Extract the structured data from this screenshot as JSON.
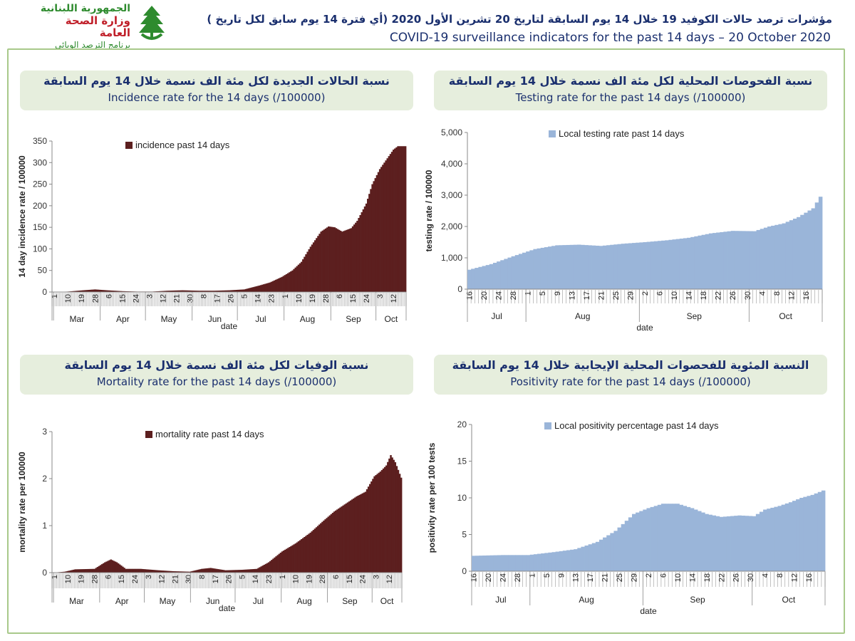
{
  "header": {
    "logo": {
      "line1": "الجمهورية اللبنانية",
      "line2": "وزارة الصحة العامة",
      "line3": "برنامج الترصد الوبائي",
      "icon": "cedar-tree-hands-icon",
      "colors": {
        "green": "#2e8b2e",
        "red": "#c0202a"
      }
    },
    "title_ar": "مؤشرات ترصد حالات الكوفيد 19 خلال  14 يوم السابقة لتاريخ 20 تشرين الأول 2020 (أي فترة  14 يوم سابق لكل تاريخ )",
    "title_en": "COVID-19 surveillance indicators for the past 14 days – 20 October 2020"
  },
  "panels": {
    "incidence": {
      "title_ar": "نسبة الحالات الجديدة لكل مئة الف نسمة خلال 14 يوم السابقة",
      "title_en": "Incidence rate for the 14 days  (/100000)"
    },
    "testing": {
      "title_ar": "نسبة الفحوصات المحلية لكل مئة الف نسمة خلال 14 يوم السابقة",
      "title_en": "Testing rate for the past 14 days (/100000)"
    },
    "mortality": {
      "title_ar": "نسبة الوفيات لكل مئة الف نسمة خلال 14 يوم السابقة",
      "title_en": "Mortality rate for the past 14 days (/100000)"
    },
    "positivity": {
      "title_ar": "النسبة المئوية للفحصوات المحلية الإيجابية خلال 14 يوم السابقة",
      "title_en": "Positivity rate for the past 14 days (/100000)"
    }
  },
  "chart_data": [
    {
      "id": "incidence",
      "type": "area",
      "color": "#5c1f1f",
      "legend": "incidence past 14 days",
      "legend_position": "top",
      "xlabel": "date",
      "ylabel": "14 day incidence rate / 100000",
      "ylim": [
        0,
        350
      ],
      "yticks": [
        "0",
        "50",
        "100",
        "150",
        "200",
        "250",
        "300",
        "350"
      ],
      "x_range": [
        "2020-02-29",
        "2020-10-20"
      ],
      "day_ticks": [
        "1",
        "10",
        "19",
        "28",
        "6",
        "15",
        "24",
        "3",
        "12",
        "21",
        "30",
        "8",
        "17",
        "26",
        "5",
        "14",
        "23",
        "1",
        "10",
        "19",
        "28",
        "6",
        "15",
        "24",
        "3",
        "12"
      ],
      "months": [
        "Mar",
        "Apr",
        "May",
        "Jun",
        "Jul",
        "Aug",
        "Sep",
        "Oct"
      ],
      "points": [
        [
          "2020-02-29",
          0
        ],
        [
          "2020-03-10",
          1
        ],
        [
          "2020-03-20",
          4
        ],
        [
          "2020-03-28",
          6
        ],
        [
          "2020-04-05",
          4
        ],
        [
          "2020-04-15",
          2
        ],
        [
          "2020-04-25",
          1
        ],
        [
          "2020-05-05",
          1
        ],
        [
          "2020-05-15",
          3
        ],
        [
          "2020-05-25",
          4
        ],
        [
          "2020-06-05",
          3
        ],
        [
          "2020-06-15",
          3
        ],
        [
          "2020-06-25",
          4
        ],
        [
          "2020-07-05",
          6
        ],
        [
          "2020-07-15",
          15
        ],
        [
          "2020-07-22",
          22
        ],
        [
          "2020-07-30",
          35
        ],
        [
          "2020-08-06",
          50
        ],
        [
          "2020-08-12",
          70
        ],
        [
          "2020-08-18",
          105
        ],
        [
          "2020-08-25",
          140
        ],
        [
          "2020-08-30",
          152
        ],
        [
          "2020-09-03",
          150
        ],
        [
          "2020-09-08",
          140
        ],
        [
          "2020-09-14",
          148
        ],
        [
          "2020-09-18",
          165
        ],
        [
          "2020-09-24",
          205
        ],
        [
          "2020-09-28",
          250
        ],
        [
          "2020-10-03",
          285
        ],
        [
          "2020-10-08",
          310
        ],
        [
          "2020-10-12",
          330
        ],
        [
          "2020-10-15",
          338
        ],
        [
          "2020-10-20",
          338
        ]
      ]
    },
    {
      "id": "testing",
      "type": "area",
      "color": "#9ab5d9",
      "legend": "Local testing rate past 14 days",
      "legend_position": "top",
      "xlabel": "date",
      "ylabel": "testing rate / 100000",
      "ylim": [
        0,
        5000
      ],
      "yticks": [
        "0",
        "1,000",
        "2,000",
        "3,000",
        "4,000",
        "5,000"
      ],
      "x_range": [
        "2020-07-16",
        "2020-10-20"
      ],
      "day_ticks": [
        "16",
        "20",
        "24",
        "28",
        "1",
        "5",
        "9",
        "13",
        "17",
        "21",
        "25",
        "29",
        "2",
        "6",
        "10",
        "14",
        "18",
        "22",
        "26",
        "30",
        "4",
        "8",
        "12",
        "16"
      ],
      "months": [
        "Jul",
        "Aug",
        "Sep",
        "Oct"
      ],
      "points": [
        [
          "2020-07-16",
          620
        ],
        [
          "2020-07-22",
          800
        ],
        [
          "2020-07-28",
          1050
        ],
        [
          "2020-08-03",
          1280
        ],
        [
          "2020-08-09",
          1400
        ],
        [
          "2020-08-15",
          1420
        ],
        [
          "2020-08-21",
          1380
        ],
        [
          "2020-08-27",
          1450
        ],
        [
          "2020-09-02",
          1500
        ],
        [
          "2020-09-08",
          1560
        ],
        [
          "2020-09-14",
          1640
        ],
        [
          "2020-09-20",
          1780
        ],
        [
          "2020-09-26",
          1860
        ],
        [
          "2020-10-02",
          1850
        ],
        [
          "2020-10-06",
          2000
        ],
        [
          "2020-10-10",
          2100
        ],
        [
          "2020-10-14",
          2300
        ],
        [
          "2020-10-18",
          2580
        ],
        [
          "2020-10-20",
          2950
        ],
        [
          "2020-10-20",
          3000
        ]
      ]
    },
    {
      "id": "mortality",
      "type": "area",
      "color": "#5c1f1f",
      "legend": "mortality rate past 14 days",
      "legend_position": "top",
      "xlabel": "date",
      "ylabel": "mortality rate per 100000",
      "ylim": [
        0,
        3
      ],
      "yticks": [
        "0",
        "1",
        "2",
        "3"
      ],
      "x_range": [
        "2020-02-29",
        "2020-10-20"
      ],
      "day_ticks": [
        "1",
        "10",
        "19",
        "28",
        "6",
        "15",
        "24",
        "3",
        "12",
        "21",
        "30",
        "8",
        "17",
        "26",
        "5",
        "14",
        "23",
        "1",
        "10",
        "19",
        "28",
        "6",
        "15",
        "24",
        "3",
        "12"
      ],
      "months": [
        "Mar",
        "Apr",
        "May",
        "Jun",
        "Jul",
        "Aug",
        "Sep",
        "Oct"
      ],
      "points": [
        [
          "2020-02-29",
          0
        ],
        [
          "2020-03-08",
          0.02
        ],
        [
          "2020-03-15",
          0.07
        ],
        [
          "2020-03-28",
          0.08
        ],
        [
          "2020-04-04",
          0.22
        ],
        [
          "2020-04-08",
          0.28
        ],
        [
          "2020-04-12",
          0.22
        ],
        [
          "2020-04-18",
          0.08
        ],
        [
          "2020-04-28",
          0.08
        ],
        [
          "2020-05-10",
          0.05
        ],
        [
          "2020-05-20",
          0.03
        ],
        [
          "2020-05-31",
          0.02
        ],
        [
          "2020-06-08",
          0.08
        ],
        [
          "2020-06-14",
          0.1
        ],
        [
          "2020-06-24",
          0.05
        ],
        [
          "2020-07-05",
          0.06
        ],
        [
          "2020-07-15",
          0.08
        ],
        [
          "2020-07-23",
          0.22
        ],
        [
          "2020-08-01",
          0.45
        ],
        [
          "2020-08-10",
          0.62
        ],
        [
          "2020-08-20",
          0.85
        ],
        [
          "2020-08-28",
          1.08
        ],
        [
          "2020-09-05",
          1.3
        ],
        [
          "2020-09-12",
          1.45
        ],
        [
          "2020-09-20",
          1.62
        ],
        [
          "2020-09-26",
          1.72
        ],
        [
          "2020-10-02",
          2.05
        ],
        [
          "2020-10-06",
          2.15
        ],
        [
          "2020-10-10",
          2.28
        ],
        [
          "2020-10-13",
          2.5
        ],
        [
          "2020-10-16",
          2.35
        ],
        [
          "2020-10-20",
          2.02
        ]
      ]
    },
    {
      "id": "positivity",
      "type": "area",
      "color": "#9ab5d9",
      "legend": "Local positivity percentage past 14 days",
      "legend_position": "top",
      "xlabel": "date",
      "ylabel": "positivity rate per 100 tests",
      "ylim": [
        0,
        20
      ],
      "yticks": [
        "0",
        "5",
        "10",
        "15",
        "20"
      ],
      "x_range": [
        "2020-07-16",
        "2020-10-20"
      ],
      "day_ticks": [
        "16",
        "20",
        "24",
        "28",
        "1",
        "5",
        "9",
        "13",
        "17",
        "21",
        "25",
        "29",
        "2",
        "6",
        "10",
        "14",
        "18",
        "22",
        "26",
        "30",
        "4",
        "8",
        "12",
        "16"
      ],
      "months": [
        "Jul",
        "Aug",
        "Sep",
        "Oct"
      ],
      "points": [
        [
          "2020-07-16",
          2.1
        ],
        [
          "2020-07-24",
          2.2
        ],
        [
          "2020-07-31",
          2.2
        ],
        [
          "2020-08-07",
          2.6
        ],
        [
          "2020-08-13",
          3.0
        ],
        [
          "2020-08-19",
          4.0
        ],
        [
          "2020-08-24",
          5.5
        ],
        [
          "2020-08-29",
          7.8
        ],
        [
          "2020-09-02",
          8.6
        ],
        [
          "2020-09-06",
          9.2
        ],
        [
          "2020-09-10",
          9.2
        ],
        [
          "2020-09-14",
          8.6
        ],
        [
          "2020-09-18",
          7.8
        ],
        [
          "2020-09-22",
          7.4
        ],
        [
          "2020-09-27",
          7.6
        ],
        [
          "2020-10-01",
          7.5
        ],
        [
          "2020-10-04",
          8.4
        ],
        [
          "2020-10-08",
          8.9
        ],
        [
          "2020-10-11",
          9.4
        ],
        [
          "2020-10-14",
          10.0
        ],
        [
          "2020-10-17",
          10.4
        ],
        [
          "2020-10-19",
          10.8
        ],
        [
          "2020-10-20",
          11.0
        ]
      ]
    }
  ]
}
